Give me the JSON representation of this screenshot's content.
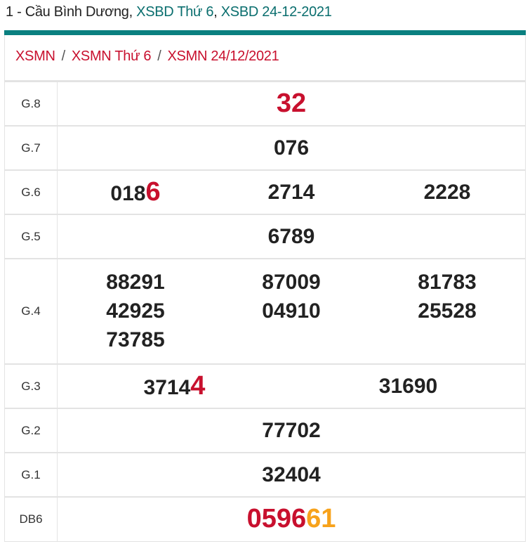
{
  "header": {
    "prefix": "1 - Cầu Bình Dương, ",
    "link1": "XSBD Thứ 6",
    "comma": ", ",
    "link2": "XSBD 24-12-2021"
  },
  "breadcrumb": [
    "XSMN",
    "XSMN Thứ 6",
    "XSMN 24/12/2021"
  ],
  "separator": "/",
  "colors": {
    "teal": "#0a8080",
    "red": "#c8102e",
    "orange": "#f7a21b"
  },
  "prizes": {
    "g8": {
      "label": "G.8",
      "value": "32"
    },
    "g7": {
      "label": "G.7",
      "value": "076"
    },
    "g6": {
      "label": "G.6",
      "values": [
        {
          "head": "018",
          "tail": "6"
        },
        "2714",
        "2228"
      ]
    },
    "g5": {
      "label": "G.5",
      "value": "6789"
    },
    "g4": {
      "label": "G.4",
      "values": [
        "88291",
        "87009",
        "81783",
        "42925",
        "04910",
        "25528",
        "73785"
      ]
    },
    "g3": {
      "label": "G.3",
      "values": [
        {
          "head": "3714",
          "tail": "4"
        },
        "31690"
      ]
    },
    "g2": {
      "label": "G.2",
      "value": "77702"
    },
    "g1": {
      "label": "G.1",
      "value": "32404"
    },
    "db": {
      "label": "DB6",
      "head": "0596",
      "tail": "61"
    }
  }
}
